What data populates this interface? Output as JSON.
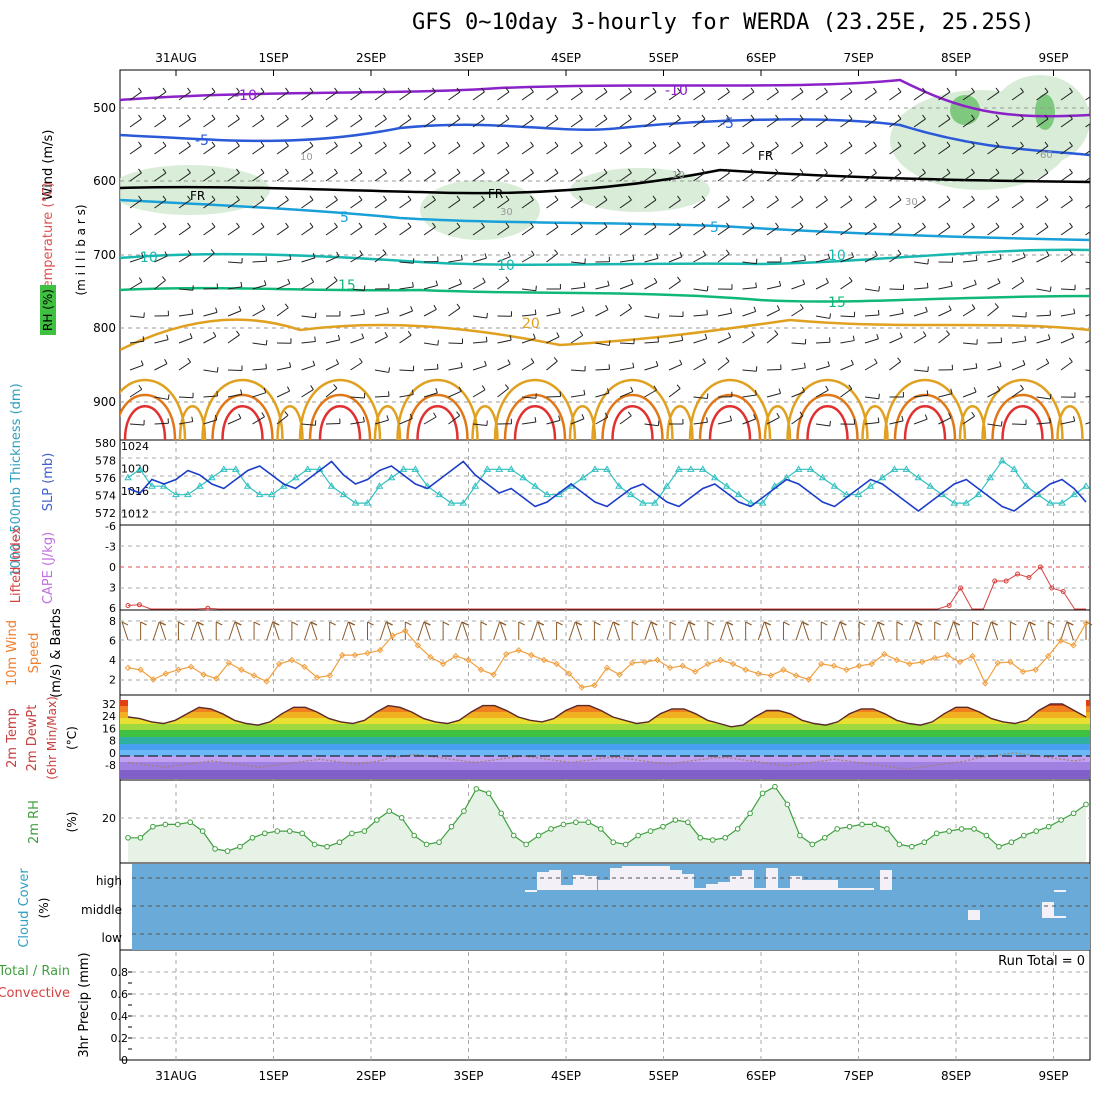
{
  "title": "GFS 0~10day 3-hourly for WERDA (23.25E, 25.25S)",
  "colors": {
    "temp_minus10": "#8a22c8",
    "temp_minus5": "#2a5ad8",
    "temp_5": "#1aa0d8",
    "temp_10": "#18b8b0",
    "temp_15": "#10b878",
    "temp_20": "#e0a020",
    "temp_25": "#e07818",
    "temp_30": "#e03030",
    "rh_green": "#7fc97f",
    "slp": "#1a3cc8",
    "thickness": "#30c0c0",
    "wind10m": "#f0a040",
    "rh2m": "#40a040",
    "cloud_bg": "#6aaad8",
    "lifted": "#d84040"
  },
  "dates": [
    "31AUG",
    "1SEP",
    "2SEP",
    "3SEP",
    "4SEP",
    "5SEP",
    "6SEP",
    "7SEP",
    "8SEP",
    "9SEP"
  ],
  "panels": {
    "upper": {
      "ylabel_wind": "Wind (m/s)",
      "ylabel_temp": "Temperature (°C)",
      "ylabel_rh": "RH (%)",
      "ylabel_mb": "(m i l l i b a r s)",
      "levels": [
        "500",
        "600",
        "700",
        "800",
        "900"
      ],
      "contour_labels": [
        "-10",
        "-10",
        "-5",
        "-5",
        "FR",
        "FR",
        "FR",
        "5",
        "5",
        "10",
        "10",
        "10",
        "15",
        "15",
        "20",
        "10",
        "10",
        "30",
        "30",
        "60"
      ]
    },
    "slp": {
      "ylabel_thick": "1000~500mb Thickness (dm)",
      "ylabel_slp": "SLP (mb)",
      "left_ticks": [
        "580",
        "578",
        "576",
        "574",
        "572"
      ],
      "right_ticks": [
        "1024",
        "1020",
        "1016",
        "1012"
      ]
    },
    "li": {
      "ylabel_li": "Lifted Index",
      "ylabel_cape": "CAPE (J/kg)",
      "ticks": [
        "-6",
        "-3",
        "0",
        "3",
        "6"
      ]
    },
    "wind": {
      "ylabel1": "10m Wind",
      "ylabel2": "Speed",
      "ylabel3": "(m/s) & Barbs",
      "ticks": [
        "8",
        "6",
        "4",
        "2"
      ]
    },
    "temp": {
      "ylabel1": "2m Temp",
      "ylabel2": "2m DewPt",
      "ylabel3": "(6hr Min/Max)",
      "unit": "(°C)",
      "ticks": [
        "32",
        "24",
        "16",
        "8",
        "0",
        "-8"
      ]
    },
    "rh": {
      "ylabel": "2m RH",
      "unit": "(%)",
      "ticks": [
        "20"
      ]
    },
    "cloud": {
      "ylabel": "Cloud Cover",
      "unit": "(%)",
      "levels": [
        "high",
        "middle",
        "low"
      ]
    },
    "precip": {
      "ylabel1": "Total / Rain",
      "ylabel2": "Convective",
      "ylabel3": "3hr Precip (mm)",
      "ticks": [
        "0.8",
        "0.6",
        "0.4",
        "0.2",
        "0"
      ],
      "run_total": "Run Total = 0"
    }
  },
  "chart_data": {
    "type": "line",
    "title": "GFS 0~10day 3-hourly for WERDA (23.25E, 25.25S)",
    "x_dates": [
      "31AUG",
      "1SEP",
      "2SEP",
      "3SEP",
      "4SEP",
      "5SEP",
      "6SEP",
      "7SEP",
      "8SEP",
      "9SEP"
    ],
    "slp_mb": [
      1017,
      1016,
      1019,
      1018,
      1019,
      1021,
      1020,
      1018,
      1017,
      1019,
      1021,
      1022,
      1020,
      1018,
      1017,
      1019,
      1021,
      1023,
      1020,
      1018,
      1019,
      1021,
      1022,
      1020,
      1018,
      1017,
      1019,
      1021,
      1023,
      1020,
      1018,
      1016,
      1017,
      1015,
      1013,
      1014,
      1016,
      1018,
      1016,
      1014,
      1013,
      1015,
      1017,
      1018,
      1016,
      1014,
      1013,
      1015,
      1017,
      1018,
      1016,
      1014,
      1013,
      1015,
      1017,
      1019,
      1018,
      1016,
      1014,
      1013,
      1015,
      1017,
      1019,
      1018,
      1016,
      1014,
      1012,
      1014,
      1016,
      1018,
      1019,
      1017,
      1015,
      1013,
      1012,
      1014,
      1016,
      1018,
      1019,
      1017,
      1014
    ],
    "thickness_dm": [
      576,
      577,
      575,
      575,
      574,
      574,
      575,
      576,
      577,
      577,
      575,
      574,
      574,
      575,
      576,
      577,
      577,
      575,
      574,
      573,
      573,
      575,
      576,
      577,
      577,
      575,
      574,
      573,
      573,
      575,
      577,
      577,
      577,
      576,
      575,
      574,
      574,
      575,
      576,
      577,
      577,
      575,
      574,
      573,
      573,
      575,
      577,
      577,
      577,
      576,
      575,
      574,
      573,
      573,
      575,
      576,
      577,
      577,
      576,
      575,
      574,
      574,
      575,
      576,
      577,
      577,
      576,
      575,
      574,
      573,
      573,
      574,
      576,
      578,
      577,
      575,
      574,
      573,
      573,
      574,
      575
    ],
    "lifted_index": [
      5.5,
      5.4,
      6,
      6,
      6,
      6,
      6,
      5.9,
      6,
      6,
      6,
      6,
      6,
      6,
      6,
      6,
      6,
      6,
      6,
      6,
      6,
      6,
      6,
      6,
      6,
      6,
      6,
      6,
      6,
      6,
      6,
      6,
      6,
      6,
      6,
      6,
      6,
      6,
      6,
      6,
      6,
      6,
      6,
      6,
      6,
      6,
      6,
      6,
      6,
      6,
      6,
      6,
      6,
      6,
      6,
      6,
      6,
      6,
      6,
      6,
      6,
      6,
      6,
      6,
      6,
      6,
      6,
      6,
      6,
      6,
      6,
      6,
      5.5,
      3,
      6,
      6,
      2,
      2,
      1,
      1.5,
      0,
      3,
      3.5,
      6,
      6
    ],
    "wind10m_ms": [
      3.2,
      3.0,
      2.0,
      2.6,
      3.0,
      3.3,
      2.5,
      2.1,
      3.7,
      3.0,
      2.4,
      1.8,
      3.6,
      4.0,
      3.3,
      2.2,
      2.4,
      4.5,
      4.5,
      4.7,
      5.0,
      6.5,
      7.0,
      5.5,
      4.3,
      3.6,
      4.4,
      4.0,
      3.0,
      2.5,
      4.6,
      5.0,
      4.5,
      4.0,
      3.6,
      2.6,
      1.2,
      1.4,
      3.2,
      2.5,
      3.7,
      3.8,
      4.0,
      3.2,
      3.4,
      2.8,
      3.6,
      4.0,
      3.6,
      3.0,
      2.6,
      2.4,
      3.0,
      2.4,
      2.0,
      3.6,
      3.4,
      3.0,
      3.4,
      3.6,
      4.6,
      4.0,
      3.6,
      3.8,
      4.2,
      4.5,
      3.8,
      4.4,
      1.6,
      3.7,
      3.8,
      2.8,
      3.0,
      4.4,
      6.0,
      5.5,
      7.8
    ],
    "temp2m_c": [
      24,
      23,
      21,
      20,
      22,
      26,
      30,
      29,
      26,
      22,
      20,
      19,
      21,
      26,
      30,
      30,
      27,
      23,
      21,
      20,
      22,
      27,
      31,
      30,
      27,
      23,
      21,
      20,
      22,
      27,
      31,
      31,
      28,
      24,
      22,
      21,
      23,
      28,
      31,
      31,
      28,
      24,
      22,
      20,
      21,
      26,
      29,
      29,
      26,
      22,
      20,
      18,
      19,
      24,
      28,
      28,
      26,
      22,
      20,
      19,
      21,
      26,
      29,
      29,
      26,
      22,
      20,
      19,
      21,
      26,
      30,
      30,
      27,
      23,
      21,
      20,
      22,
      28,
      32,
      32,
      28,
      24
    ],
    "dewpt2m_c": [
      -4,
      -5,
      -6,
      -7,
      -6,
      -5,
      -4,
      -3,
      -4,
      -5,
      -6,
      -7,
      -6,
      -5,
      -4,
      -3,
      -2,
      -3,
      -4,
      -5,
      -4,
      -3,
      -1,
      0,
      1,
      0,
      -1,
      -2,
      -3,
      -4,
      -3,
      -2,
      -1,
      0,
      -1,
      -2,
      -3,
      -4,
      -3,
      -2,
      -1,
      -1,
      -2,
      -3,
      -4,
      -5,
      -4,
      -3,
      -2,
      -1,
      -1,
      -2,
      -3,
      -4,
      -5,
      -6,
      -5,
      -4,
      -3,
      -2,
      -3,
      -4,
      -5,
      -6,
      -7,
      -8,
      -7,
      -6,
      -5,
      -4,
      -3,
      -1,
      0,
      1,
      2,
      1,
      0,
      -1,
      -2,
      -3,
      -2
    ],
    "rh2m_pct": [
      10,
      10,
      15,
      16,
      16,
      17,
      13,
      5,
      4,
      6,
      10,
      12,
      13,
      13,
      12,
      7,
      6,
      8,
      12,
      13,
      18,
      22,
      19,
      11,
      7,
      8,
      15,
      22,
      32,
      30,
      21,
      11,
      7,
      11,
      14,
      16,
      17,
      17,
      14,
      8,
      7,
      11,
      13,
      15,
      18,
      17,
      10,
      9,
      10,
      14,
      21,
      30,
      33,
      25,
      11,
      7,
      10,
      14,
      15,
      16,
      16,
      14,
      7,
      6,
      8,
      12,
      13,
      14,
      14,
      11,
      6,
      8,
      11,
      13,
      15,
      18,
      21,
      25
    ]
  }
}
